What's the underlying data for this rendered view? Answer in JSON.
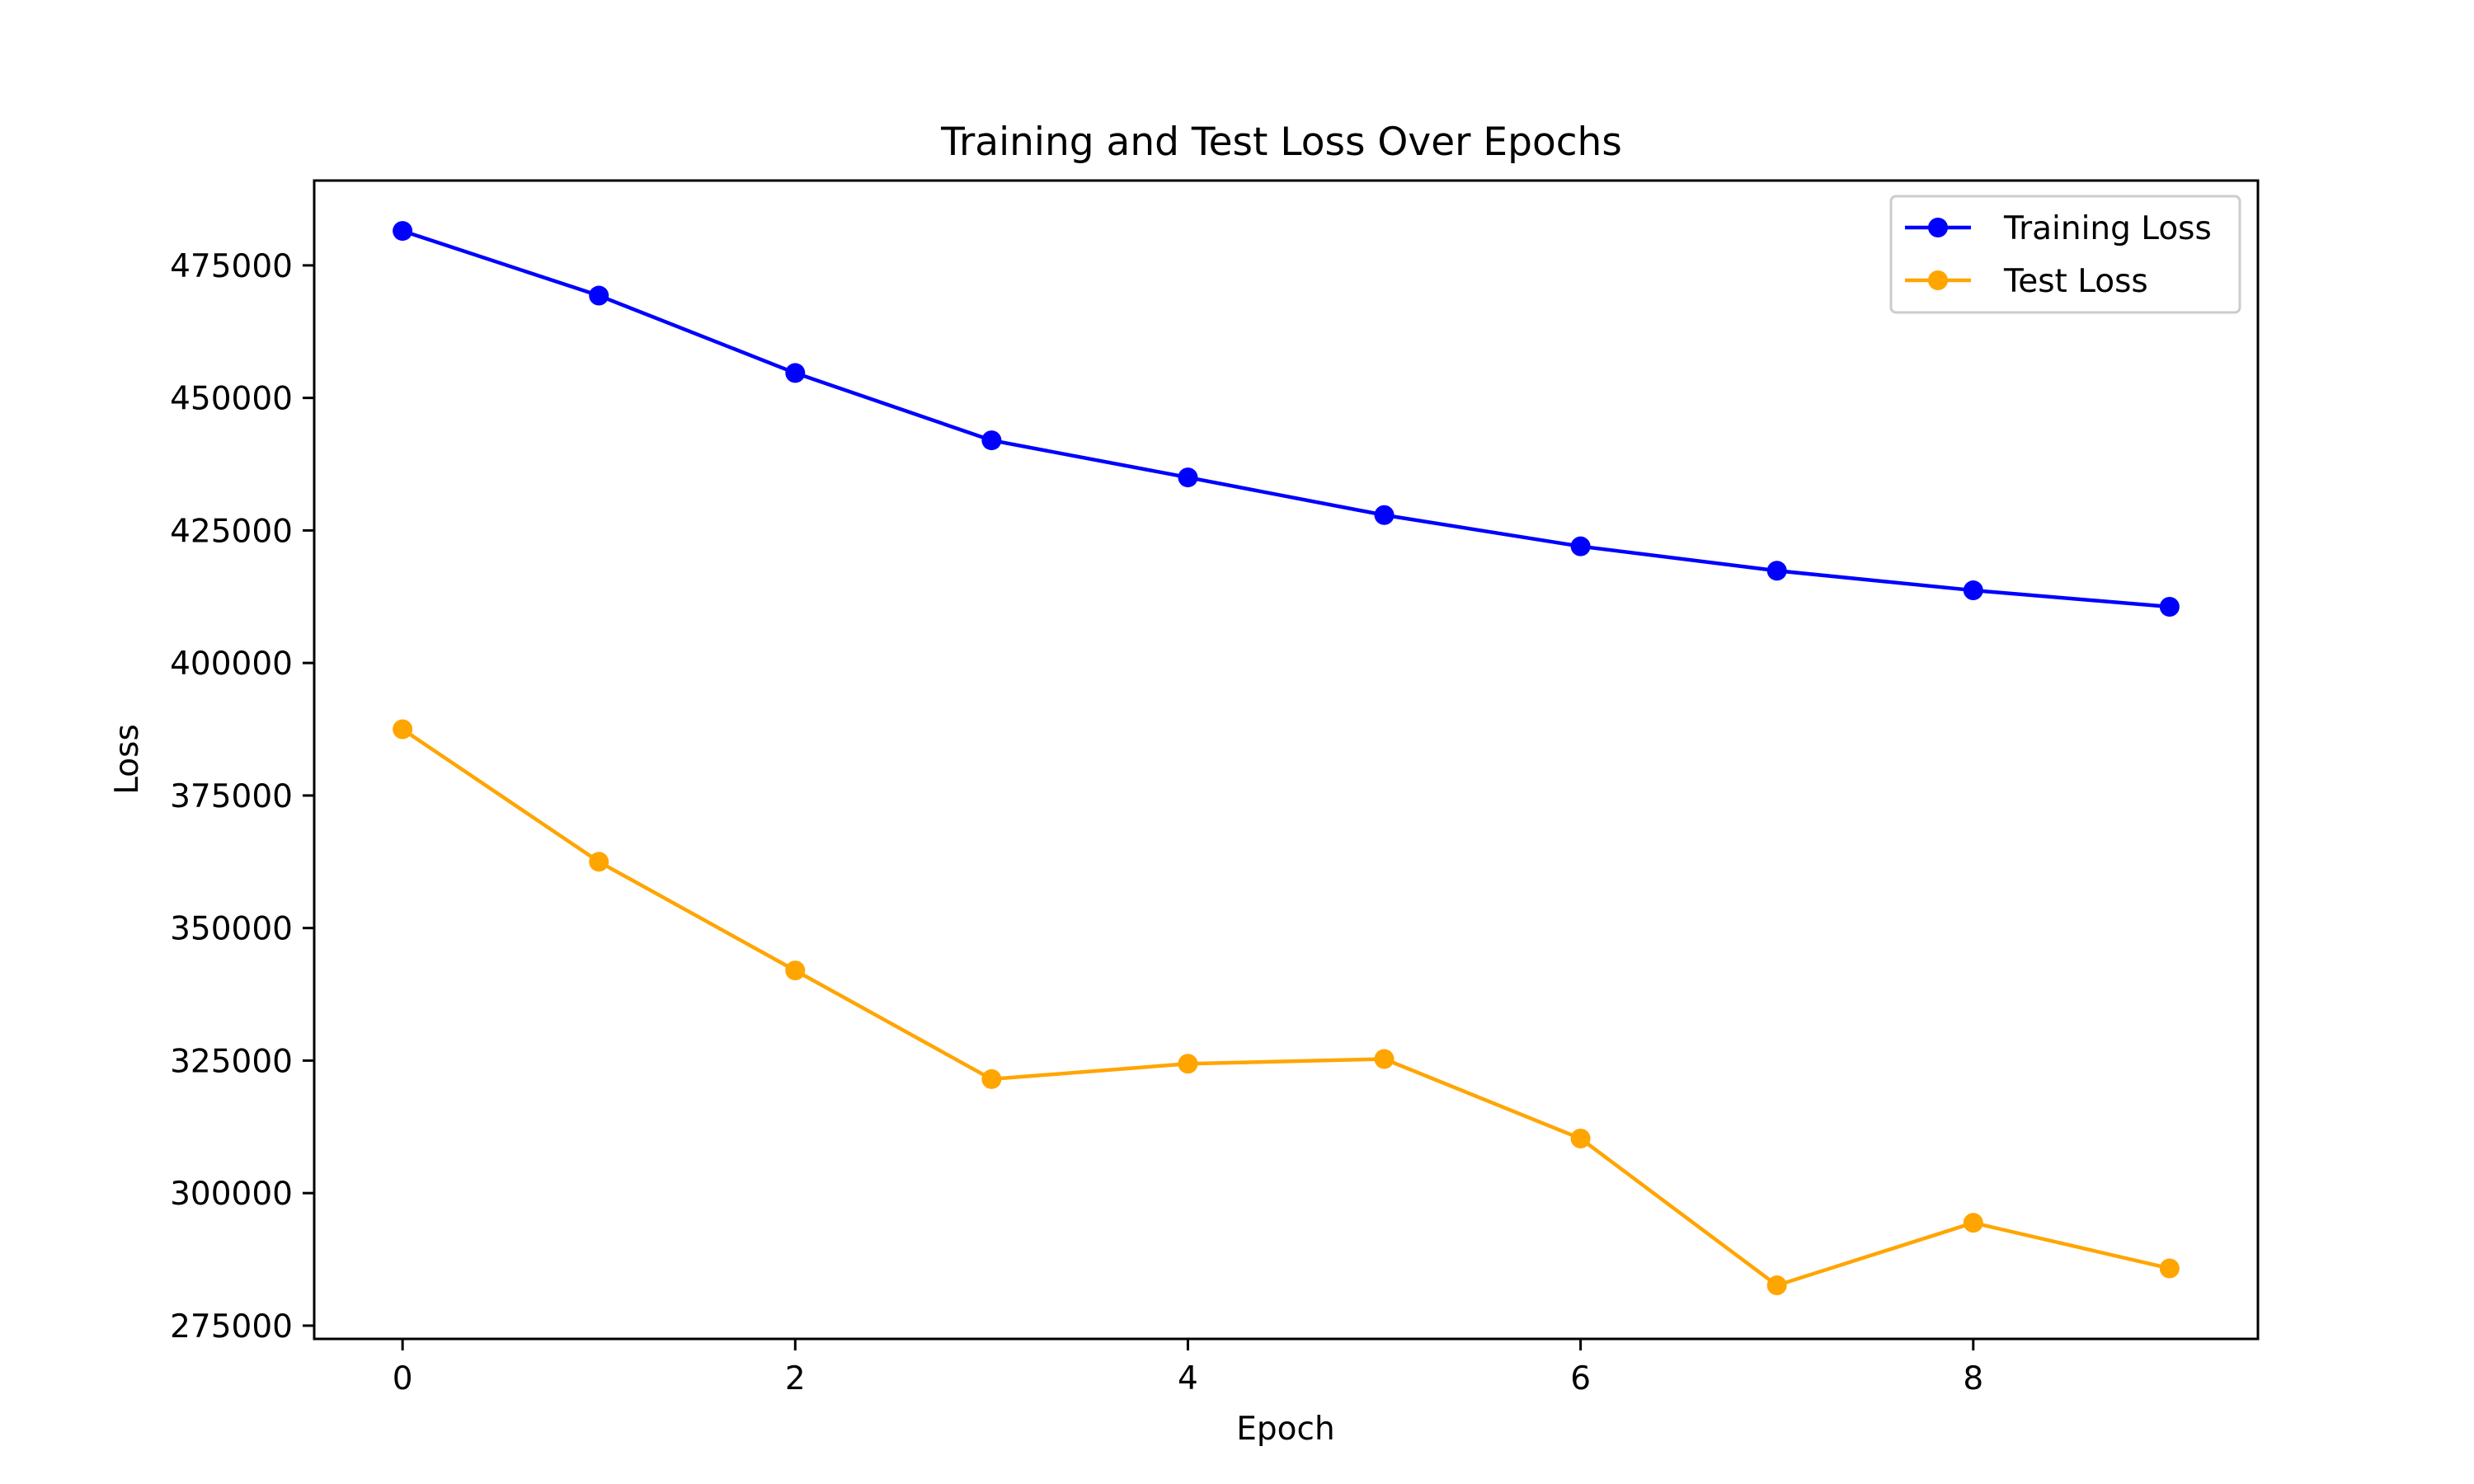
{
  "chart_data": {
    "type": "line",
    "title": "Training and Test Loss Over Epochs",
    "xlabel": "Epoch",
    "ylabel": "Loss",
    "x": [
      0,
      1,
      2,
      3,
      4,
      5,
      6,
      7,
      8,
      9
    ],
    "xlim": [
      -0.45,
      9.45
    ],
    "ylim": [
      272500,
      491000
    ],
    "xticks": [
      0,
      2,
      4,
      6,
      8
    ],
    "yticks": [
      275000,
      300000,
      325000,
      350000,
      375000,
      400000,
      425000,
      450000,
      475000
    ],
    "grid": false,
    "legend_position": "top-right",
    "series": [
      {
        "name": "Training Loss",
        "color": "#0000ff",
        "marker": "circle",
        "values": [
          481500,
          469300,
          454700,
          442000,
          435000,
          427900,
          422000,
          417400,
          413700,
          410600
        ]
      },
      {
        "name": "Test Loss",
        "color": "#ffa500",
        "marker": "circle",
        "values": [
          387500,
          362500,
          342000,
          321500,
          324400,
          325300,
          310300,
          282600,
          294400,
          285800
        ]
      }
    ]
  }
}
